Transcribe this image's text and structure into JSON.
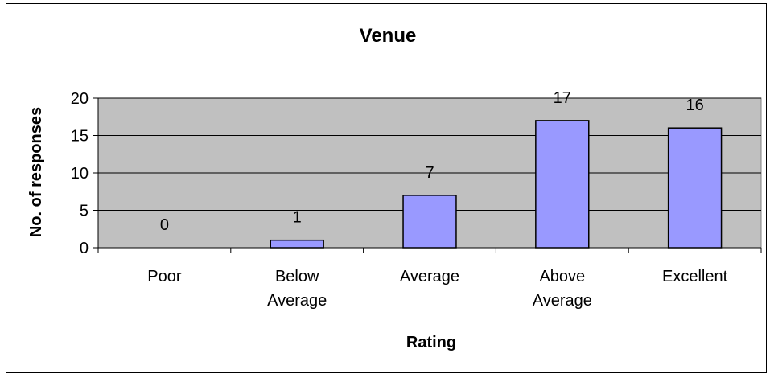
{
  "chart_data": {
    "type": "bar",
    "title": "Venue",
    "xlabel": "Rating",
    "ylabel": "No. of responses",
    "categories": [
      [
        "Poor"
      ],
      [
        "Below",
        "Average"
      ],
      [
        "Average"
      ],
      [
        "Above",
        "Average"
      ],
      [
        "Excellent"
      ]
    ],
    "values": [
      0,
      1,
      7,
      17,
      16
    ],
    "ylim": [
      0,
      20
    ],
    "yticks": [
      0,
      5,
      10,
      15,
      20
    ],
    "grid": true,
    "legend": "none",
    "colors": {
      "bar_fill": "#9999ff",
      "plot_background": "#c0c0c0",
      "gridline": "#000000",
      "bar_stroke": "#000000"
    }
  }
}
